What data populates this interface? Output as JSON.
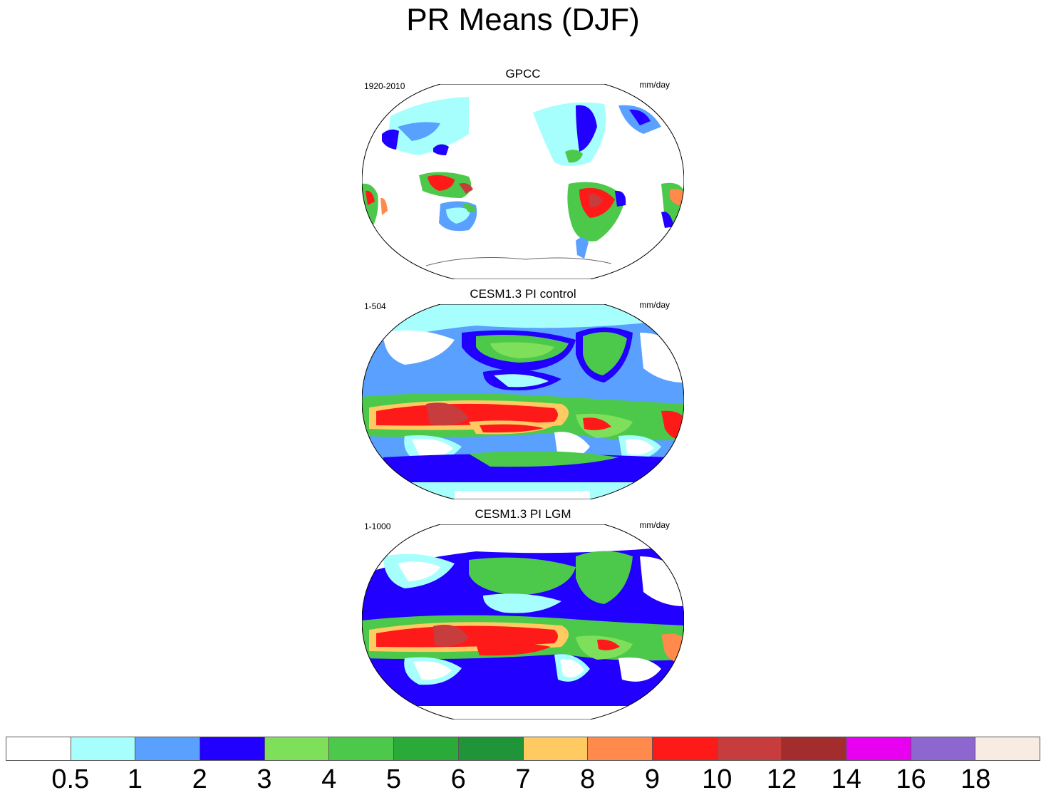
{
  "title": "PR Means (DJF)",
  "panels": [
    {
      "title": "GPCC",
      "left_label": "1920-2010",
      "right_label": "mm/day"
    },
    {
      "title": "CESM1.3 PI control",
      "left_label": "1-504",
      "right_label": "mm/day"
    },
    {
      "title": "CESM1.3 PI LGM",
      "left_label": "1-1000",
      "right_label": "mm/day"
    }
  ],
  "colorbar": {
    "colors": [
      "#ffffff",
      "#a6fffd",
      "#5aa0ff",
      "#2200ff",
      "#7ee05a",
      "#4cc94a",
      "#2aaa38",
      "#1f9438",
      "#ffca62",
      "#ff8a4c",
      "#ff1a1a",
      "#c73c3c",
      "#a32c2c",
      "#e800f0",
      "#8e66d0",
      "#f8ebe2"
    ],
    "labels": [
      "0.5",
      "1",
      "2",
      "3",
      "4",
      "5",
      "6",
      "7",
      "8",
      "9",
      "10",
      "12",
      "14",
      "16",
      "18"
    ]
  }
}
